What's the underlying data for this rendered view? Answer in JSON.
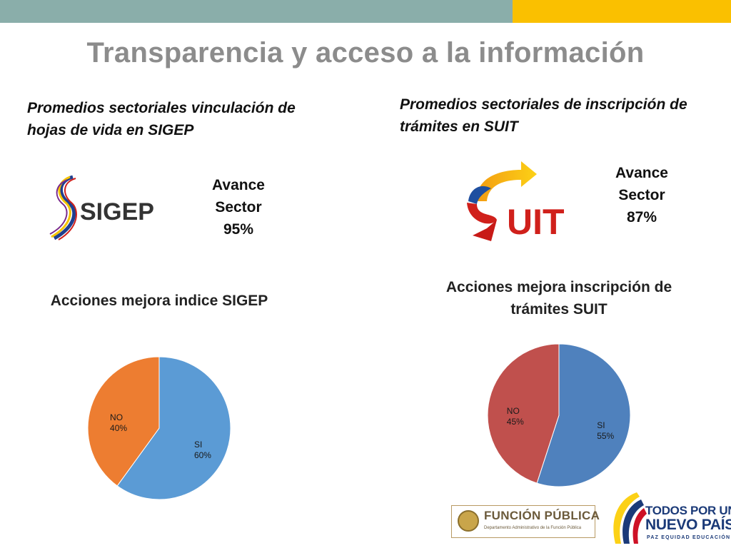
{
  "slide": {
    "title": "Transparencia y acceso a la información",
    "colors": {
      "teal_bar": "#8aaeaa",
      "gold_bar": "#fac000",
      "title": "#8c8c8c"
    }
  },
  "left": {
    "heading": "Promedios sectoriales vinculación de hojas de vida en SIGEP",
    "logo_text": "SIGEP",
    "avance": [
      "Avance",
      "Sector",
      "95%"
    ]
  },
  "right": {
    "heading": "Promedios sectoriales de inscripción de trámites en SUIT",
    "logo_text": "UIT",
    "avance": [
      "Avance",
      "Sector",
      "87%"
    ]
  },
  "footer": {
    "funcion_publica": "FUNCIÓN PÚBLICA",
    "funcion_publica_sub": "Departamento Administrativo de la Función Pública",
    "todos_line1": "TODOS POR UN",
    "todos_line2": "NUEVO PAÍS",
    "todos_line3": "PAZ  EQUIDAD  EDUCACIÓN"
  },
  "chart_data": [
    {
      "type": "pie",
      "title": "Acciones mejora indice SIGEP",
      "slices": [
        {
          "label": "SI",
          "percent_label": "60%",
          "value": 60,
          "color": "#5b9bd5"
        },
        {
          "label": "NO",
          "percent_label": "40%",
          "value": 40,
          "color": "#ed7d31"
        }
      ]
    },
    {
      "type": "pie",
      "title": "Acciones mejora inscripción de trámites SUIT",
      "slices": [
        {
          "label": "SI",
          "percent_label": "55%",
          "value": 55,
          "color": "#4f81bd"
        },
        {
          "label": "NO",
          "percent_label": "45%",
          "value": 45,
          "color": "#c0504d"
        }
      ]
    }
  ]
}
